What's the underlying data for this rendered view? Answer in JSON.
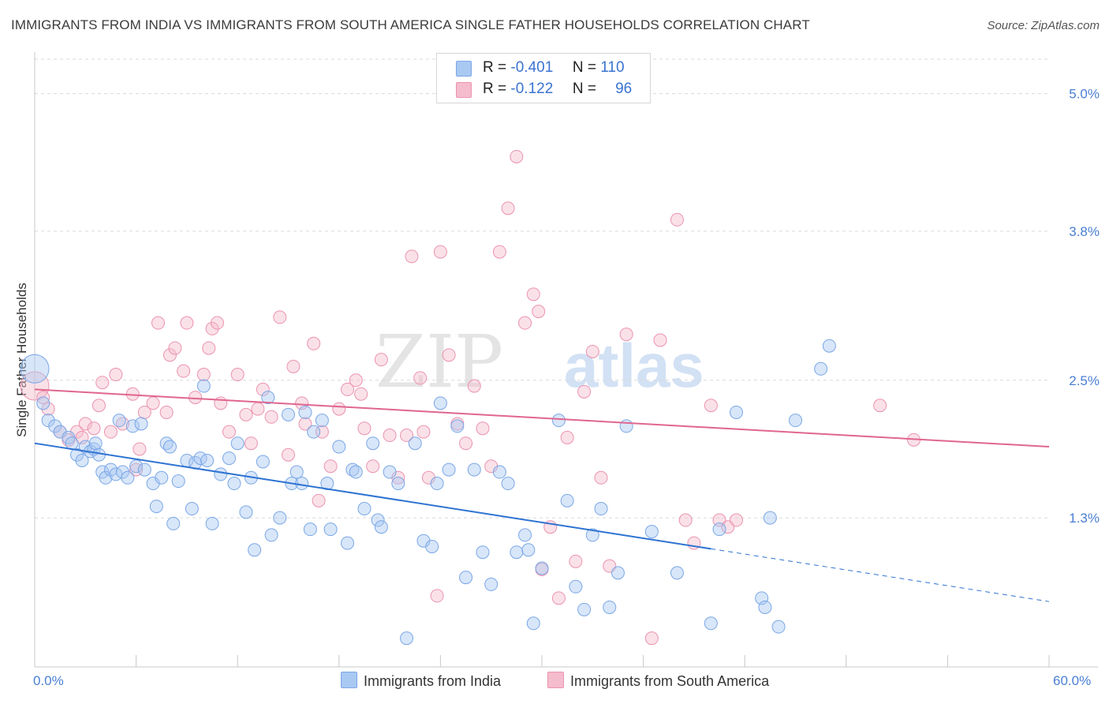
{
  "title": "IMMIGRANTS FROM INDIA VS IMMIGRANTS FROM SOUTH AMERICA SINGLE FATHER HOUSEHOLDS CORRELATION CHART",
  "source": "Source: ZipAtlas.com",
  "watermark": {
    "zip": "ZIP",
    "atlas": "atlas"
  },
  "colors": {
    "india_fill": "#a9c8f2",
    "india_stroke": "#7aa7e6",
    "india_line": "#2e73d2",
    "sa_fill": "#f5bccd",
    "sa_stroke": "#eb93b0",
    "sa_line": "#e06690",
    "axis_text": "#4a7fd4",
    "grid": "#d9d9d9"
  },
  "legend_top": {
    "rows": [
      {
        "r_label": "R =",
        "r_value": "-0.401",
        "n_label": "N =",
        "n_value": "110"
      },
      {
        "r_label": "R =",
        "r_value": "-0.122",
        "n_label": "N =",
        "n_value": "96"
      }
    ]
  },
  "legend_bottom": {
    "india": "Immigrants from India",
    "south_america": "Immigrants from South America"
  },
  "chart_data": {
    "type": "scatter",
    "title": "IMMIGRANTS FROM INDIA VS IMMIGRANTS FROM SOUTH AMERICA SINGLE FATHER HOUSEHOLDS CORRELATION CHART",
    "xlabel": "",
    "ylabel": "Single Father Households",
    "xlim": [
      0,
      60
    ],
    "ylim": [
      0,
      5.3
    ],
    "x_tick_labels": [
      "0.0%",
      "60.0%"
    ],
    "y_ticks": [
      1.3,
      2.5,
      3.8,
      5.0
    ],
    "y_tick_labels": [
      "1.3%",
      "2.5%",
      "3.8%",
      "5.0%"
    ],
    "grid": true,
    "legend_position": "top-center",
    "series": [
      {
        "name": "Immigrants from India",
        "r": -0.401,
        "n": 110,
        "trend": {
          "x0": 0,
          "y0": 1.95,
          "x_solid_end": 40,
          "x1": 60,
          "y1": 0.57
        },
        "points": [
          [
            0.0,
            2.6
          ],
          [
            0.5,
            2.3
          ],
          [
            0.8,
            2.15
          ],
          [
            1.2,
            2.1
          ],
          [
            1.5,
            2.05
          ],
          [
            2.0,
            2.0
          ],
          [
            2.2,
            1.95
          ],
          [
            2.5,
            1.85
          ],
          [
            2.8,
            1.8
          ],
          [
            3.0,
            1.92
          ],
          [
            3.3,
            1.88
          ],
          [
            3.5,
            1.9
          ],
          [
            3.6,
            1.95
          ],
          [
            3.8,
            1.85
          ],
          [
            4.0,
            1.7
          ],
          [
            4.2,
            1.65
          ],
          [
            4.5,
            1.72
          ],
          [
            4.8,
            1.68
          ],
          [
            5.0,
            2.15
          ],
          [
            5.2,
            1.7
          ],
          [
            5.5,
            1.65
          ],
          [
            5.8,
            2.1
          ],
          [
            6.0,
            1.75
          ],
          [
            6.3,
            2.12
          ],
          [
            6.5,
            1.72
          ],
          [
            7.0,
            1.6
          ],
          [
            7.2,
            1.4
          ],
          [
            7.5,
            1.65
          ],
          [
            7.8,
            1.95
          ],
          [
            8.0,
            1.92
          ],
          [
            8.2,
            1.25
          ],
          [
            8.5,
            1.62
          ],
          [
            9.0,
            1.8
          ],
          [
            9.3,
            1.38
          ],
          [
            9.5,
            1.78
          ],
          [
            9.8,
            1.82
          ],
          [
            10.0,
            2.45
          ],
          [
            10.2,
            1.8
          ],
          [
            10.5,
            1.25
          ],
          [
            11.0,
            1.68
          ],
          [
            11.5,
            1.82
          ],
          [
            11.8,
            1.6
          ],
          [
            12.0,
            1.95
          ],
          [
            12.5,
            1.35
          ],
          [
            12.8,
            1.65
          ],
          [
            13.0,
            1.02
          ],
          [
            13.5,
            1.79
          ],
          [
            13.8,
            2.35
          ],
          [
            14.0,
            1.15
          ],
          [
            14.5,
            1.3
          ],
          [
            15.0,
            2.2
          ],
          [
            15.2,
            1.6
          ],
          [
            15.5,
            1.7
          ],
          [
            15.8,
            1.6
          ],
          [
            16.0,
            2.22
          ],
          [
            16.3,
            1.2
          ],
          [
            16.5,
            2.05
          ],
          [
            17.0,
            2.15
          ],
          [
            17.3,
            1.6
          ],
          [
            17.5,
            1.2
          ],
          [
            18.0,
            1.92
          ],
          [
            18.5,
            1.08
          ],
          [
            18.8,
            1.72
          ],
          [
            19.0,
            1.7
          ],
          [
            19.5,
            1.38
          ],
          [
            20.0,
            1.95
          ],
          [
            20.3,
            1.28
          ],
          [
            20.5,
            1.22
          ],
          [
            21.0,
            1.7
          ],
          [
            21.5,
            1.6
          ],
          [
            22.0,
            0.25
          ],
          [
            22.5,
            1.95
          ],
          [
            23.0,
            1.1
          ],
          [
            23.5,
            1.05
          ],
          [
            23.8,
            1.6
          ],
          [
            24.0,
            2.3
          ],
          [
            24.5,
            1.72
          ],
          [
            25.0,
            2.1
          ],
          [
            25.5,
            0.78
          ],
          [
            26.0,
            1.72
          ],
          [
            26.5,
            1.0
          ],
          [
            27.0,
            0.72
          ],
          [
            27.5,
            1.7
          ],
          [
            28.0,
            1.6
          ],
          [
            28.5,
            1.0
          ],
          [
            29.0,
            1.15
          ],
          [
            29.2,
            1.02
          ],
          [
            29.5,
            0.38
          ],
          [
            30.0,
            0.86
          ],
          [
            31.0,
            2.15
          ],
          [
            31.5,
            1.45
          ],
          [
            32.0,
            0.7
          ],
          [
            32.5,
            0.5
          ],
          [
            33.0,
            1.15
          ],
          [
            33.5,
            1.38
          ],
          [
            34.0,
            0.52
          ],
          [
            34.5,
            0.82
          ],
          [
            35.0,
            2.1
          ],
          [
            36.5,
            1.18
          ],
          [
            38.0,
            0.82
          ],
          [
            40.0,
            0.38
          ],
          [
            40.5,
            1.2
          ],
          [
            41.5,
            2.22
          ],
          [
            43.0,
            0.6
          ],
          [
            43.2,
            0.52
          ],
          [
            43.5,
            1.3
          ],
          [
            44.0,
            0.35
          ],
          [
            45.0,
            2.15
          ],
          [
            46.5,
            2.6
          ],
          [
            47.0,
            2.8
          ]
        ]
      },
      {
        "name": "Immigrants from South America",
        "r": -0.122,
        "n": 96,
        "trend": {
          "x0": 0,
          "y0": 2.42,
          "x1": 60,
          "y1": 1.92
        },
        "points": [
          [
            0.0,
            2.45
          ],
          [
            0.5,
            2.35
          ],
          [
            0.8,
            2.25
          ],
          [
            1.5,
            2.05
          ],
          [
            2.0,
            1.98
          ],
          [
            2.5,
            2.05
          ],
          [
            2.8,
            2.0
          ],
          [
            3.0,
            2.12
          ],
          [
            3.5,
            2.08
          ],
          [
            3.8,
            2.28
          ],
          [
            4.0,
            2.48
          ],
          [
            4.5,
            2.05
          ],
          [
            4.8,
            2.55
          ],
          [
            5.2,
            2.12
          ],
          [
            5.8,
            2.38
          ],
          [
            6.0,
            1.72
          ],
          [
            6.2,
            1.9
          ],
          [
            6.5,
            2.22
          ],
          [
            7.0,
            2.3
          ],
          [
            7.3,
            3.0
          ],
          [
            7.8,
            2.22
          ],
          [
            8.0,
            2.72
          ],
          [
            8.3,
            2.78
          ],
          [
            8.8,
            2.58
          ],
          [
            9.0,
            3.0
          ],
          [
            9.5,
            2.35
          ],
          [
            10.0,
            2.55
          ],
          [
            10.3,
            2.78
          ],
          [
            10.5,
            2.95
          ],
          [
            10.8,
            3.0
          ],
          [
            11.0,
            2.3
          ],
          [
            11.5,
            2.05
          ],
          [
            12.0,
            2.55
          ],
          [
            12.5,
            2.2
          ],
          [
            12.8,
            1.95
          ],
          [
            13.2,
            2.25
          ],
          [
            13.5,
            2.42
          ],
          [
            14.0,
            2.18
          ],
          [
            14.5,
            3.05
          ],
          [
            15.0,
            1.85
          ],
          [
            15.3,
            2.62
          ],
          [
            15.8,
            2.3
          ],
          [
            16.0,
            2.12
          ],
          [
            16.5,
            2.82
          ],
          [
            16.8,
            1.45
          ],
          [
            17.0,
            2.05
          ],
          [
            17.5,
            1.75
          ],
          [
            18.0,
            2.25
          ],
          [
            18.5,
            2.42
          ],
          [
            19.0,
            2.5
          ],
          [
            19.3,
            2.38
          ],
          [
            19.5,
            2.08
          ],
          [
            20.0,
            1.75
          ],
          [
            20.5,
            2.68
          ],
          [
            21.0,
            2.02
          ],
          [
            21.5,
            1.65
          ],
          [
            22.0,
            2.02
          ],
          [
            22.3,
            3.58
          ],
          [
            22.8,
            2.52
          ],
          [
            23.0,
            2.05
          ],
          [
            23.3,
            1.65
          ],
          [
            23.8,
            0.62
          ],
          [
            24.0,
            3.62
          ],
          [
            24.5,
            2.72
          ],
          [
            25.0,
            2.12
          ],
          [
            25.5,
            1.95
          ],
          [
            26.0,
            2.45
          ],
          [
            26.5,
            2.08
          ],
          [
            27.0,
            1.75
          ],
          [
            27.5,
            3.62
          ],
          [
            28.0,
            4.0
          ],
          [
            28.5,
            4.45
          ],
          [
            29.0,
            3.0
          ],
          [
            29.5,
            3.25
          ],
          [
            29.8,
            3.1
          ],
          [
            30.0,
            0.85
          ],
          [
            30.5,
            1.22
          ],
          [
            31.0,
            0.6
          ],
          [
            31.5,
            2.0
          ],
          [
            32.0,
            0.92
          ],
          [
            32.5,
            2.4
          ],
          [
            33.0,
            2.75
          ],
          [
            33.5,
            1.65
          ],
          [
            34.0,
            0.88
          ],
          [
            35.0,
            2.9
          ],
          [
            36.5,
            0.25
          ],
          [
            37.0,
            2.85
          ],
          [
            38.0,
            3.9
          ],
          [
            38.5,
            1.28
          ],
          [
            39.0,
            1.08
          ],
          [
            40.0,
            2.28
          ],
          [
            40.5,
            1.28
          ],
          [
            41.0,
            1.22
          ],
          [
            41.5,
            1.28
          ],
          [
            50.0,
            2.28
          ],
          [
            52.0,
            1.98
          ]
        ]
      }
    ]
  }
}
